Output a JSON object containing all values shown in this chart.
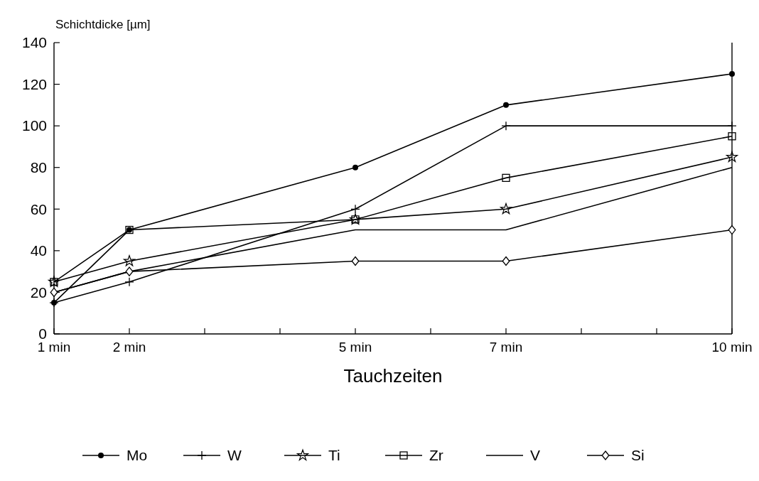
{
  "chart_data": {
    "type": "line",
    "ylabel": "Schichtdicke [µm]",
    "xlabel": "Tauchzeiten",
    "x": [
      1,
      2,
      5,
      7,
      10
    ],
    "series": [
      {
        "name": "Mo",
        "color": "#000000",
        "marker": "circle",
        "values": [
          15,
          50,
          80,
          110,
          125
        ]
      },
      {
        "name": "W",
        "color": "#000000",
        "marker": "cross",
        "values": [
          15,
          25,
          60,
          100,
          100
        ]
      },
      {
        "name": "Ti",
        "color": "#000000",
        "marker": "star",
        "values": [
          25,
          35,
          55,
          60,
          85
        ]
      },
      {
        "name": "Zr",
        "color": "#000000",
        "marker": "square",
        "values": [
          25,
          50,
          55,
          75,
          95
        ]
      },
      {
        "name": "V",
        "color": "#000000",
        "marker": "none",
        "values": [
          20,
          30,
          50,
          50,
          80
        ]
      },
      {
        "name": "Si",
        "color": "#000000",
        "marker": "diamond",
        "values": [
          20,
          30,
          35,
          35,
          50
        ]
      }
    ],
    "xlim": [
      1,
      10
    ],
    "xticks": [
      {
        "value": 1,
        "label": "1 min"
      },
      {
        "value": 2,
        "label": "2 min"
      },
      {
        "value": 3,
        "label": null
      },
      {
        "value": 4,
        "label": null
      },
      {
        "value": 5,
        "label": "5 min"
      },
      {
        "value": 6,
        "label": null
      },
      {
        "value": 7,
        "label": "7 min"
      },
      {
        "value": 8,
        "label": null
      },
      {
        "value": 9,
        "label": null
      },
      {
        "value": 10,
        "label": "10 min"
      }
    ],
    "ylim": [
      0,
      140
    ],
    "yticks": [
      0,
      20,
      40,
      60,
      80,
      100,
      120,
      140
    ],
    "grid": false,
    "legend": "bottom",
    "line_style": "solid"
  }
}
